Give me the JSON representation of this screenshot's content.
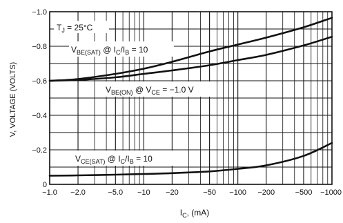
{
  "chart_data": {
    "type": "line",
    "x_scale": "log",
    "xlabel_main": "I",
    "xlabel_sub": "C",
    "xlabel_unit": ", (mA)",
    "ylabel": "V, VOLTAGE (VOLTS)",
    "xlim": [
      1,
      1000
    ],
    "ylim": [
      0,
      -1.0
    ],
    "grid": true,
    "x_ticks": [
      {
        "value": 1,
        "label": "−1.0"
      },
      {
        "value": 2,
        "label": "−2.0"
      },
      {
        "value": 5,
        "label": "−5.0"
      },
      {
        "value": 10,
        "label": "−10"
      },
      {
        "value": 20,
        "label": "−20"
      },
      {
        "value": 50,
        "label": "−50"
      },
      {
        "value": 100,
        "label": "−100"
      },
      {
        "value": 200,
        "label": "−200"
      },
      {
        "value": 500,
        "label": "−500"
      },
      {
        "value": 1000,
        "label": "−1000"
      }
    ],
    "y_ticks": [
      {
        "value": 0,
        "label": "0"
      },
      {
        "value": -0.2,
        "label": "−0.2"
      },
      {
        "value": -0.4,
        "label": "−0.4"
      },
      {
        "value": -0.6,
        "label": "−0.6"
      },
      {
        "value": -0.8,
        "label": "−0.8"
      },
      {
        "value": -1.0,
        "label": "−1.0"
      }
    ],
    "series": [
      {
        "x": [
          1,
          2,
          5,
          10,
          20,
          50,
          100,
          200,
          500,
          1000
        ],
        "y": [
          -0.6,
          -0.61,
          -0.64,
          -0.67,
          -0.71,
          -0.77,
          -0.81,
          -0.85,
          -0.91,
          -0.965
        ]
      },
      {
        "x": [
          1,
          2,
          5,
          10,
          20,
          50,
          100,
          200,
          500,
          1000
        ],
        "y": [
          -0.6,
          -0.605,
          -0.62,
          -0.64,
          -0.66,
          -0.69,
          -0.72,
          -0.75,
          -0.805,
          -0.855
        ]
      },
      {
        "x": [
          1,
          2,
          5,
          10,
          20,
          50,
          100,
          200,
          500,
          1000
        ],
        "y": [
          -0.05,
          -0.052,
          -0.056,
          -0.06,
          -0.065,
          -0.075,
          -0.09,
          -0.11,
          -0.165,
          -0.24
        ]
      }
    ],
    "annotations": {
      "tj": {
        "main": "T",
        "sub": "J",
        "rest": " = 25°C"
      },
      "vbe_sat": {
        "main": "V",
        "sub1": "BE(SAT)",
        "mid": " @ I",
        "sub2": "C",
        "mid2": "/I",
        "sub3": "B",
        "rest": " = 10"
      },
      "vbe_on": {
        "main": "V",
        "sub1": "BE(ON)",
        "mid": " @ V",
        "sub2": "CE",
        "rest": " = −1.0 V"
      },
      "vce_sat": {
        "main": "V",
        "sub1": "CE(SAT)",
        "mid": " @ I",
        "sub2": "C",
        "mid2": "/I",
        "sub3": "B",
        "rest": " = 10"
      }
    }
  }
}
